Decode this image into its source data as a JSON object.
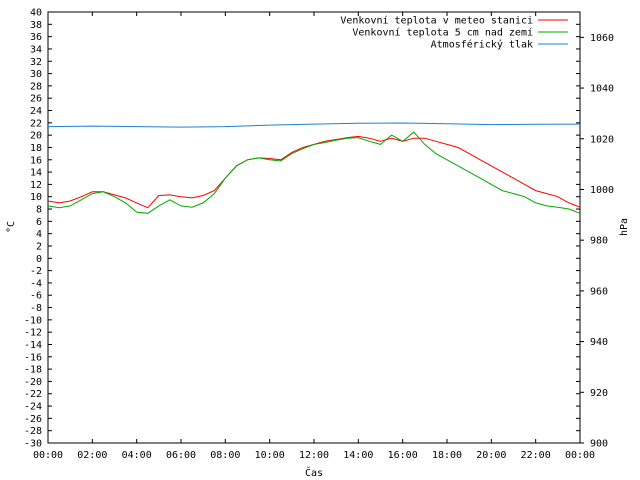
{
  "chart_data": {
    "type": "line",
    "xlabel": "Čas",
    "ylabel_left": "°C",
    "ylabel_right": "hPa",
    "ylim_left": [
      -30,
      40
    ],
    "ylim_right": [
      900,
      1070
    ],
    "xlim": [
      0,
      24
    ],
    "x_ticks": [
      "00:00",
      "02:00",
      "04:00",
      "06:00",
      "08:00",
      "10:00",
      "12:00",
      "14:00",
      "16:00",
      "18:00",
      "20:00",
      "22:00",
      "00:00"
    ],
    "y_ticks_left": [
      40,
      38,
      36,
      34,
      32,
      30,
      28,
      26,
      24,
      22,
      20,
      18,
      16,
      14,
      12,
      10,
      8,
      6,
      4,
      2,
      0,
      -2,
      -4,
      -6,
      -8,
      -10,
      -12,
      -14,
      -16,
      -18,
      -20,
      -22,
      -24,
      -26,
      -28,
      -30
    ],
    "y_ticks_right": [
      1060,
      1040,
      1020,
      1000,
      980,
      960,
      940,
      920,
      900
    ],
    "grid": false,
    "legend_position": "top-right",
    "series": [
      {
        "name": "Venkovní teplota v meteo stanici",
        "color": "#ff0000",
        "axis": "left",
        "x": [
          0,
          0.5,
          1,
          1.5,
          2,
          2.5,
          3,
          3.5,
          4,
          4.5,
          5,
          5.5,
          6,
          6.5,
          7,
          7.5,
          8,
          8.5,
          9,
          9.5,
          10,
          10.5,
          11,
          11.5,
          12,
          12.5,
          13,
          13.5,
          14,
          14.5,
          15,
          15.5,
          16,
          16.5,
          17,
          17.5,
          18,
          18.5,
          19,
          19.5,
          20,
          20.5,
          21,
          21.5,
          22,
          22.5,
          23,
          23.5,
          24
        ],
        "y": [
          9.3,
          9.0,
          9.3,
          10.0,
          10.8,
          10.8,
          10.3,
          9.8,
          9.0,
          8.2,
          10.2,
          10.3,
          10.0,
          9.8,
          10.2,
          11.0,
          13.0,
          15.0,
          16.0,
          16.3,
          16.2,
          16.0,
          17.2,
          18.0,
          18.5,
          19.0,
          19.3,
          19.6,
          19.8,
          19.5,
          19.0,
          19.5,
          19.0,
          19.5,
          19.5,
          19.0,
          18.5,
          18.0,
          17.0,
          16.0,
          15.0,
          14.0,
          13.0,
          12.0,
          11.0,
          10.5,
          10.0,
          9.0,
          8.3
        ]
      },
      {
        "name": "Venkovní teplota 5 cm nad zemí",
        "color": "#00aa00",
        "axis": "left",
        "x": [
          0,
          0.5,
          1,
          1.5,
          2,
          2.5,
          3,
          3.5,
          4,
          4.5,
          5,
          5.5,
          6,
          6.5,
          7,
          7.5,
          8,
          8.5,
          9,
          9.5,
          10,
          10.5,
          11,
          11.5,
          12,
          12.5,
          13,
          13.5,
          14,
          14.5,
          15,
          15.5,
          16,
          16.5,
          17,
          17.5,
          18,
          18.5,
          19,
          19.5,
          20,
          20.5,
          21,
          21.5,
          22,
          22.5,
          23,
          23.5,
          24
        ],
        "y": [
          8.5,
          8.2,
          8.5,
          9.5,
          10.5,
          10.8,
          10.0,
          9.0,
          7.5,
          7.3,
          8.5,
          9.5,
          8.5,
          8.3,
          9.0,
          10.5,
          13.0,
          15.0,
          16.0,
          16.3,
          16.0,
          15.8,
          17.0,
          17.8,
          18.5,
          18.8,
          19.2,
          19.5,
          19.6,
          19.0,
          18.5,
          20.0,
          19.0,
          20.5,
          18.5,
          17.0,
          16.0,
          15.0,
          14.0,
          13.0,
          12.0,
          11.0,
          10.5,
          10.0,
          9.0,
          8.5,
          8.3,
          8.0,
          7.3
        ]
      },
      {
        "name": "Atmosférický tlak",
        "color": "#2080d0",
        "axis": "right",
        "x": [
          0,
          2,
          4,
          6,
          8,
          10,
          12,
          14,
          16,
          18,
          20,
          22,
          24
        ],
        "y": [
          1024.8,
          1025.0,
          1024.8,
          1024.6,
          1024.8,
          1025.4,
          1025.8,
          1026.1,
          1026.2,
          1025.9,
          1025.6,
          1025.7,
          1025.8
        ]
      }
    ]
  }
}
